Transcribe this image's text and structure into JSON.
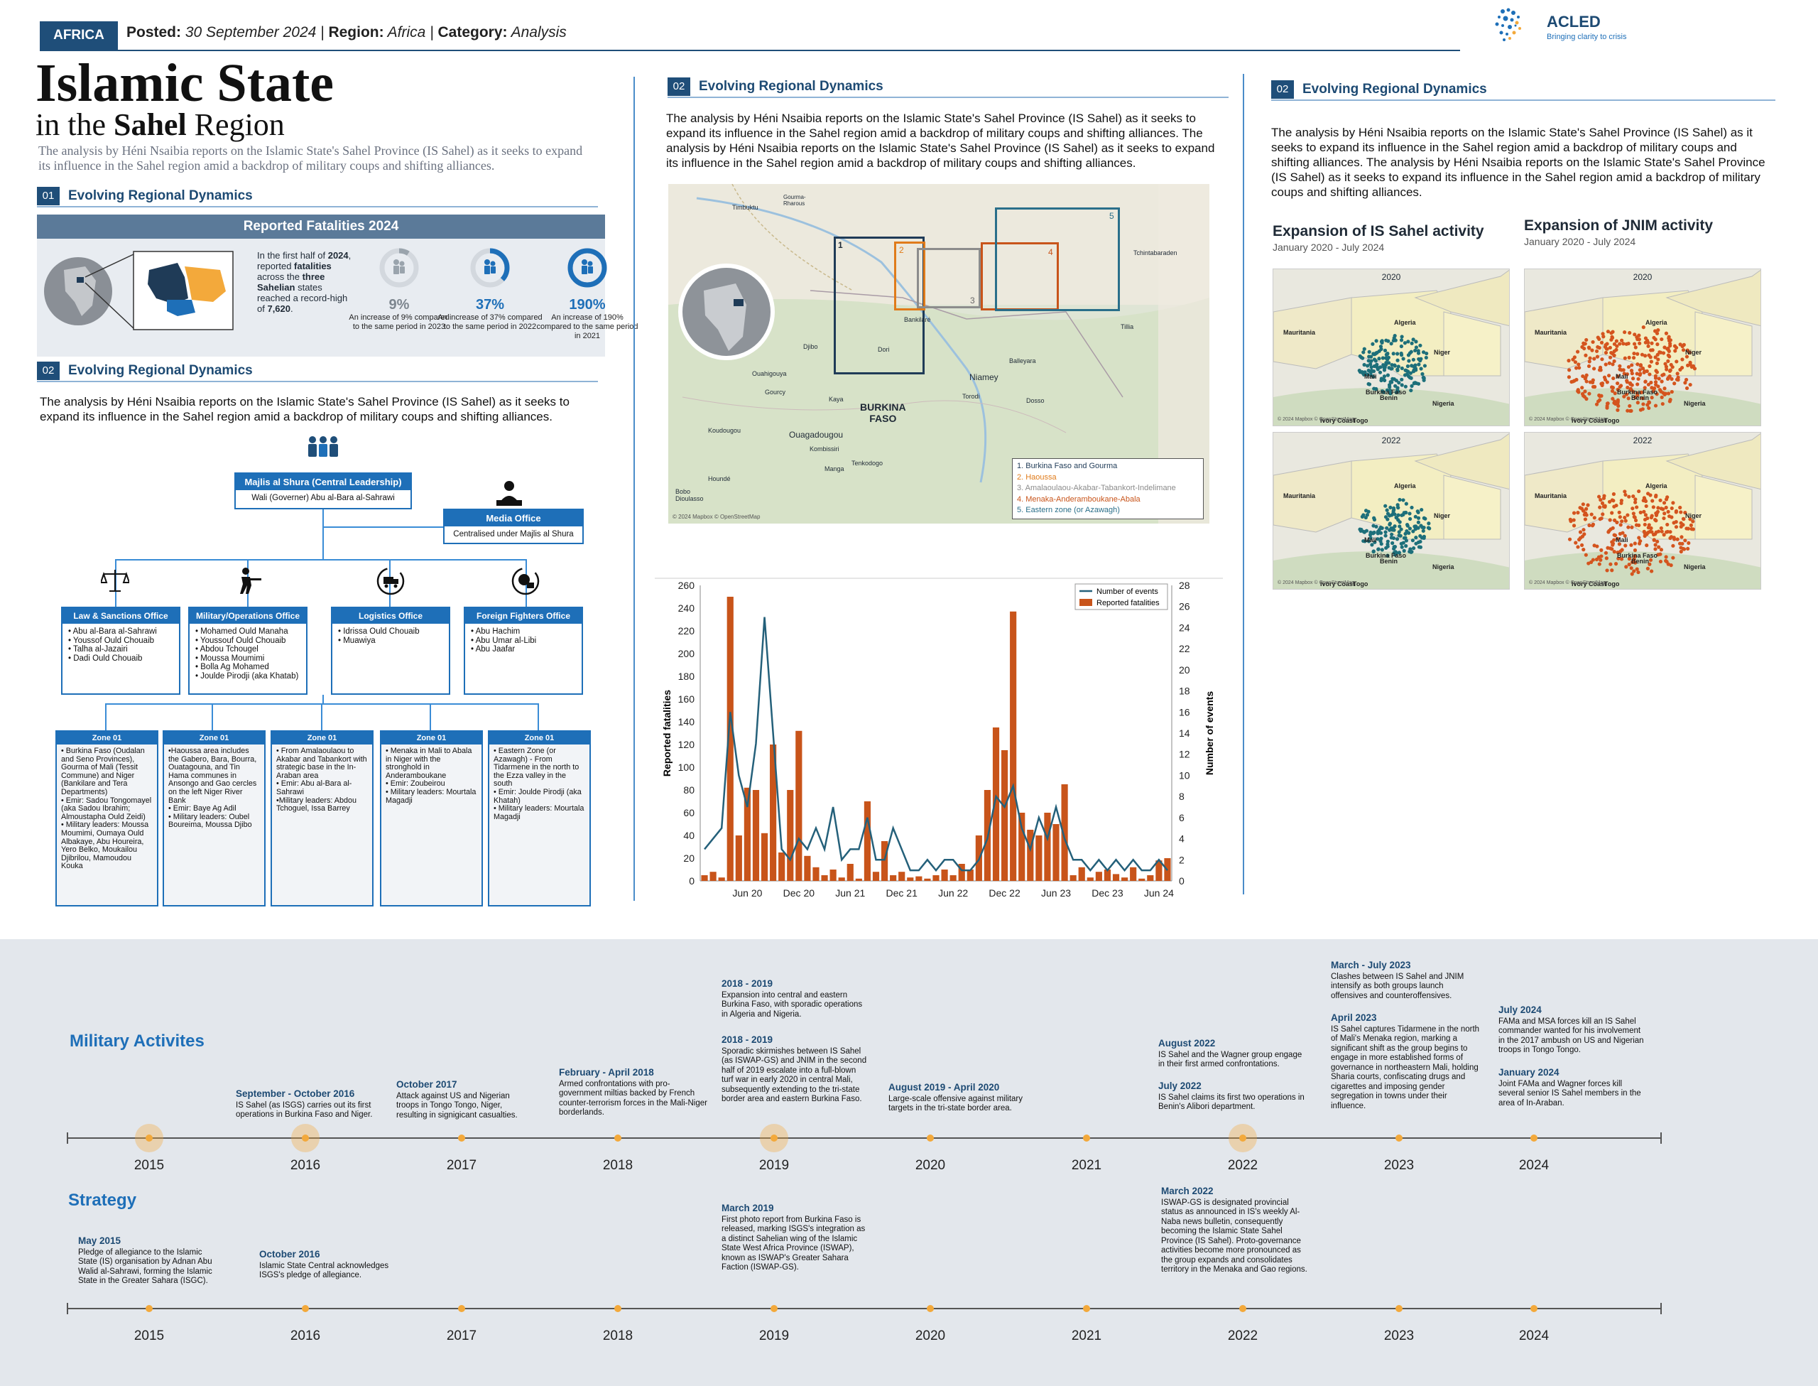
{
  "header": {
    "tag": "AFRICA",
    "posted_label": "Posted:",
    "posted_date": "30 September 2024",
    "region_label": "Region:",
    "region_value": "Africa",
    "category_label": "Category:",
    "category_value": "Analysis",
    "logo_name": "ACLED",
    "logo_tagline": "Bringing clarity to crisis"
  },
  "title": {
    "line1": "Islamic State",
    "line2_pre": "in the",
    "line2_bold": "Sahel",
    "line2_post": "Region"
  },
  "intro": "The analysis by Héni Nsaibia reports on the Islamic State's Sahel Province (IS Sahel) as it seeks to expand its influence in the Sahel region amid a backdrop of military coups and shifting alliances.",
  "section1": {
    "num": "01",
    "title": "Evolving Regional Dynamics"
  },
  "fatalities": {
    "header": "Reported Fatalities 2024",
    "summary_parts": [
      "In the first half of ",
      "2024",
      ", reported ",
      "fatalities",
      " across the ",
      "three Sahelian",
      " states reached a record-high of ",
      "7,620",
      "."
    ],
    "stats": [
      {
        "pct": "9%",
        "fill": 0.09,
        "color": "#9aa4ad",
        "desc": "An increase of 9% compared to the same period in 2023"
      },
      {
        "pct": "37%",
        "fill": 0.37,
        "color": "#1e6fb8",
        "desc": "An increase of 37% compared to the same period in 2022"
      },
      {
        "pct": "190%",
        "fill": 1.0,
        "color": "#1e6fb8",
        "desc": "An increase of 190% compared to the same period in 2021"
      }
    ]
  },
  "section2": {
    "num": "02",
    "title": "Evolving Regional Dynamics",
    "text": "The analysis by Héni Nsaibia reports on the Islamic State's Sahel Province (IS Sahel) as it seeks to expand its influence in the Sahel region amid a backdrop of military coups and shifting alliances."
  },
  "org": {
    "shura": {
      "title": "Majlis al Shura (Central Leadership)",
      "sub": "Wali (Governer) Abu al-Bara al-Sahrawi"
    },
    "media": {
      "title": "Media Office",
      "sub": "Centralised under Majlis al Shura"
    },
    "offices": [
      {
        "title": "Law & Sanctions Office",
        "members": "• Abu al-Bara al-Sahrawi\n• Youssof Ould Chouaib\n• Talha al-Jazairi\n• Dadi Ould Chouaib"
      },
      {
        "title": "Military/Operations Office",
        "members": "• Mohamed Ould Manaha\n• Youssouf Ould Chouaib\n• Abdou Tchougel\n• Moussa Moumimi\n• Bolla Ag Mohamed\n• Joulde Pirodji (aka Khatab)"
      },
      {
        "title": "Logistics Office",
        "members": "• Idrissa Ould Chouaib\n• Muawiya"
      },
      {
        "title": "Foreign Fighters Office",
        "members": "• Abu Hachim\n• Abu Umar al-Libi\n• Abu Jaafar"
      }
    ],
    "zones": [
      {
        "title": "Zone 01",
        "text": "• Burkina Faso (Oudalan and Seno Provinces), Gourma of Mali (Tessit Commune) and Niger (Bankilare and Tera Departments)\n• Emir: Sadou Tongomayel (aka Sadou Ibrahim; Almoustapha Ould Zeidi)\n• Military leaders: Moussa Moumimi, Oumaya Ould Albakaye, Abu Houreira, Yero Belko, Moukailou Djibrilou, Mamoudou Kouka"
      },
      {
        "title": "Zone 01",
        "text": "•Haoussa area includes the Gabero, Bara, Bourra, Ouatagouna, and Tin Hama communes in Ansongo and Gao cercles on the left Niger River Bank\n• Emir: Baye Ag Adil\n• Military leaders: Oubel Boureima, Moussa Djibo"
      },
      {
        "title": "Zone 01",
        "text": "• From Amalaoulaou to Akabar and Tabankort with strategic base in the In-Araban area\n• Emir: Abu al-Bara al-Sahrawi\n•Military leaders: Abdou Tchoguel, Issa Barrey"
      },
      {
        "title": "Zone 01",
        "text": "• Menaka in Mali to Abala in Niger with the stronghold in Anderamboukane\n• Emir: Zoubeirou\n• Military leaders: Mourtala Magadji"
      },
      {
        "title": "Zone 01",
        "text": "• Eastern Zone (or Azawagh) - From Tidarmene in the north to the Ezza valley in the south\n• Emir: Joulde Pirodji (aka Khatah)\n• Military leaders: Mourtala Magadji"
      }
    ]
  },
  "mid": {
    "num": "02",
    "title": "Evolving Regional Dynamics",
    "text": "The analysis by Héni Nsaibia reports on the Islamic State's Sahel Province (IS Sahel) as it seeks to expand its influence in the Sahel region amid a backdrop of military coups and shifting alliances. The analysis by Héni Nsaibia reports on the Islamic State's Sahel Province (IS Sahel) as it seeks to expand its influence in the Sahel region amid a backdrop of military coups and shifting alliances.",
    "map": {
      "country_label": "BURKINA\nFASO",
      "credit": "© 2024 Mapbox © OpenStreetMap",
      "places": [
        "Timbuktu",
        "Gourma-Rharous",
        "Tchintabaraden",
        "Bankilaré",
        "Djibo",
        "Dori",
        "Niamey",
        "Balleyara",
        "Tillia",
        "Torodi",
        "Dosso",
        "Ouahigouya",
        "Gourcy",
        "Kaya",
        "Ouagadougou",
        "Koudougou",
        "Kombissiri",
        "Manga",
        "Tenkodogo",
        "Houndé",
        "Bobo Dioulasso"
      ],
      "legend": [
        {
          "label": "1. Burkina Faso and Gourma",
          "color": "#1f3b57"
        },
        {
          "label": "2. Haoussa",
          "color": "#e07b1a"
        },
        {
          "label": "3. Amalaoulaou-Akabar-Tabankort-Indelimane",
          "color": "#8c8c8c"
        },
        {
          "label": "4. Menaka-Anderamboukane-Abala",
          "color": "#c8541a"
        },
        {
          "label": "5. Eastern zone (or Azawagh)",
          "color": "#2a6f8a"
        }
      ],
      "box_numbers": [
        "1",
        "2",
        "3",
        "4",
        "5"
      ]
    }
  },
  "chart_data": {
    "type": "bar",
    "title": "",
    "xlabel": "",
    "ylabel": "Reported fatalities",
    "y2label": "Number of events",
    "ylim": [
      0,
      260
    ],
    "y2lim": [
      0,
      28
    ],
    "yticks": [
      0,
      20,
      40,
      60,
      80,
      100,
      120,
      140,
      160,
      180,
      200,
      220,
      240,
      260
    ],
    "y2ticks": [
      0,
      2,
      4,
      6,
      8,
      10,
      12,
      14,
      16,
      18,
      20,
      22,
      24,
      26,
      28
    ],
    "xtick_labels": [
      "Jun 20",
      "Dec 20",
      "Jun 21",
      "Dec 21",
      "Jun 22",
      "Dec 22",
      "Jun 23",
      "Dec 23",
      "Jun 24"
    ],
    "xtick_index": [
      5,
      11,
      17,
      23,
      29,
      35,
      41,
      47,
      53
    ],
    "legend": [
      {
        "name": "Number of events",
        "color": "#24607a"
      },
      {
        "name": "Reported fatalities",
        "color": "#c8541a"
      }
    ],
    "series": [
      {
        "name": "Reported fatalities",
        "color": "#c8541a",
        "values": [
          5,
          8,
          3,
          250,
          40,
          82,
          80,
          42,
          120,
          25,
          80,
          132,
          22,
          12,
          5,
          10,
          3,
          15,
          2,
          70,
          8,
          35,
          5,
          8,
          3,
          4,
          2,
          5,
          10,
          5,
          15,
          10,
          40,
          80,
          135,
          115,
          237,
          60,
          45,
          40,
          60,
          50,
          85,
          5,
          12,
          3,
          8,
          10,
          6,
          3,
          12,
          2,
          5,
          18,
          20
        ]
      },
      {
        "name": "Number of events",
        "color": "#24607a",
        "values": [
          3,
          4,
          5,
          16,
          10,
          7,
          13,
          25,
          14,
          3,
          2,
          4,
          3,
          5,
          3,
          7,
          2,
          3,
          3,
          6,
          2,
          2,
          5,
          3,
          1,
          1,
          2,
          1,
          2,
          2,
          1,
          1,
          2,
          4,
          8,
          7,
          9,
          5,
          3,
          6,
          4,
          7,
          4,
          2,
          2,
          1,
          2,
          1,
          2,
          1,
          2,
          1,
          1,
          2,
          1
        ]
      }
    ]
  },
  "right": {
    "num": "02",
    "title": "Evolving Regional Dynamics",
    "text": "The analysis by Héni Nsaibia reports on the Islamic State's Sahel Province (IS Sahel) as it seeks to expand its influence in the Sahel region amid a backdrop of military coups and shifting alliances. The analysis by Héni Nsaibia reports on the Islamic State's Sahel Province (IS Sahel) as it seeks to expand its influence in the Sahel region amid a backdrop of military coups and shifting alliances.",
    "maps": [
      {
        "title": "Expansion of IS Sahel activity",
        "sub": "January 2020 - July 2024",
        "years": [
          "2020",
          "2022"
        ],
        "color": "#1d6f7a"
      },
      {
        "title": "Expansion of JNIM activity",
        "sub": "January 2020 - July 2024",
        "years": [
          "2020",
          "2022"
        ],
        "color": "#d4541e"
      }
    ],
    "map_labels": [
      "Mauritania",
      "Algeria",
      "Mali",
      "Niger",
      "Nigeria",
      "Burkina Faso",
      "Benin",
      "Ivory Coast",
      "Togo"
    ],
    "map_credit": "© 2024 Mapbox © OpenStreetMap"
  },
  "timeline": {
    "military_heading": "Military Activites",
    "strategy_heading": "Strategy",
    "years": [
      "2015",
      "2016",
      "2017",
      "2018",
      "2019",
      "2020",
      "2021",
      "2022",
      "2023",
      "2024"
    ],
    "highlight_years": [
      "2015",
      "2016",
      "2019",
      "2022"
    ],
    "military": [
      {
        "date": "September - October 2016",
        "text": "IS Sahel (as ISGS) carries out its first operations in Burkina Faso and Niger."
      },
      {
        "date": "October 2017",
        "text": "Attack against US and Nigerian troops in Tongo Tongo, Niger, resulting in signigicant casualties."
      },
      {
        "date": "February - April 2018",
        "text": "Armed confrontations with pro-government miltias backed by French counter-terrorism forces in the Mali-Niger borderlands."
      },
      {
        "date": "2018 - 2019",
        "text": "Expansion into central and eastern Burkina Faso, with sporadic operations in Algeria and Nigeria."
      },
      {
        "date": "2018 - 2019",
        "text": "Sporadic skirmishes between IS Sahel (as ISWAP-GS) and JNIM in the second half of 2019 escalate into a full-blown turf war in early 2020 in central Mali, subsequently extending to the tri-state border area and eastern Burkina Faso."
      },
      {
        "date": "August 2019 - April 2020",
        "text": "Large-scale offensive against military targets in the tri-state border area."
      },
      {
        "date": "August 2022",
        "text": "IS Sahel and the Wagner group engage in their first armed confrontations."
      },
      {
        "date": "July 2022",
        "text": "IS Sahel claims its first two operations in Benin's Alibori department."
      },
      {
        "date": "March - July 2023",
        "text": "Clashes between IS Sahel and JNIM intensify as both groups launch offensives and counteroffensives."
      },
      {
        "date": "April 2023",
        "text": "IS Sahel captures Tidarmene in the north of Mali's Menaka region, marking a significant shift as the group begins to engage in more established forms of governance in northeastern Mali, holding Sharia courts, confiscating drugs and cigarettes and imposing gender segregation in towns under their influence."
      },
      {
        "date": "July 2024",
        "text": "FAMa and MSA forces kill an IS Sahel commander wanted for his involvement in the 2017 ambush on US and Nigerian troops in Tongo Tongo."
      },
      {
        "date": "January 2024",
        "text": "Joint FAMa and Wagner forces kill several senior IS Sahel members in the area of In-Araban."
      }
    ],
    "strategy": [
      {
        "date": "May 2015",
        "text": "Pledge of allegiance to the Islamic State (IS) organisation by Adnan Abu Walid al-Sahrawi, forming the Islamic State in the Greater Sahara (ISGC)."
      },
      {
        "date": "October 2016",
        "text": "Islamic State Central acknowledges ISGS's pledge of allegiance."
      },
      {
        "date": "March 2019",
        "text": "First photo report from Burkina Faso is released, marking ISGS's integration as a distinct Sahelian wing of the Islamic State West Africa Province (ISWAP), known as ISWAP's Greater Sahara Faction (ISWAP-GS)."
      },
      {
        "date": "March 2022",
        "text": "ISWAP-GS is designated provincial status as announced in IS's weekly Al-Naba news bulletin, consequently becoming the Islamic State Sahel Province (IS Sahel). Proto-governance activities become more pronounced as the group expands and consolidates territory in the Menaka and Gao regions."
      }
    ]
  }
}
